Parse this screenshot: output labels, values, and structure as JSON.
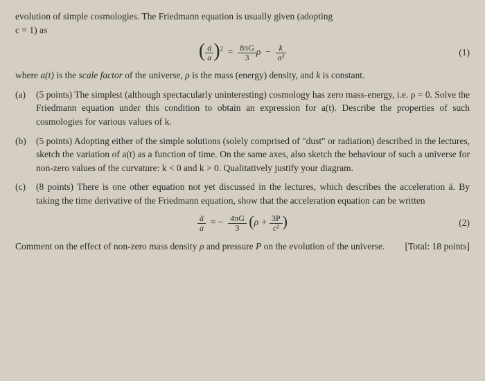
{
  "intro": {
    "line1": "evolution of simple cosmologies. The Friedmann equation is usually given (adopting",
    "line2_prefix": "c = 1) as"
  },
  "eq1": {
    "adot": "ȧ",
    "a": "a",
    "eq": "=",
    "coef_num": "8πG",
    "coef_den": "3",
    "rho": "ρ",
    "minus": "−",
    "k": "k",
    "a2": "a²",
    "num": "(1)"
  },
  "where": {
    "pre": "where ",
    "at": "a(t)",
    "mid1": " is the ",
    "scale": "scale factor",
    "mid2": " of the universe, ",
    "rho": "ρ",
    "mid3": " is the mass (energy) density, and ",
    "k": "k",
    "post": " is constant."
  },
  "parts": {
    "a": {
      "label": "(a)",
      "points": "(5 points)",
      "text": " The simplest (although spectacularly uninteresting) cosmology has zero mass-energy, i.e. ρ = 0. Solve the Friedmann equation under this condition to obtain an expression for a(t). Describe the properties of such cosmologies for various values of k."
    },
    "b": {
      "label": "(b)",
      "points": "(5 points)",
      "text": " Adopting either of the simple solutions (solely comprised of \"dust\" or radiation) described in the lectures, sketch the variation of a(t) as a function of time. On the same axes, also sketch the behaviour of such a universe for non-zero values of the curvature: k < 0 and k > 0. Qualitatively justify your diagram."
    },
    "c": {
      "label": "(c)",
      "points": "(8 points)",
      "text": " There is one other equation not yet discussed in the lectures, which describes the acceleration ä. By taking the time derivative of the Friedmann equation, show that the acceleration equation can be written"
    }
  },
  "eq2": {
    "addot": "ä",
    "a": "a",
    "eq": "= −",
    "coef_num": "4πG",
    "coef_den": "3",
    "rho": "ρ +",
    "p3": "3P",
    "c2": "c²",
    "num": "(2)"
  },
  "comment": {
    "text_pre": "Comment on the effect of non-zero mass density ",
    "rho": "ρ",
    "text_mid": " and pressure ",
    "P": "P",
    "text_post": " on the evolution of the universe."
  },
  "total": "[Total: 18 points]"
}
